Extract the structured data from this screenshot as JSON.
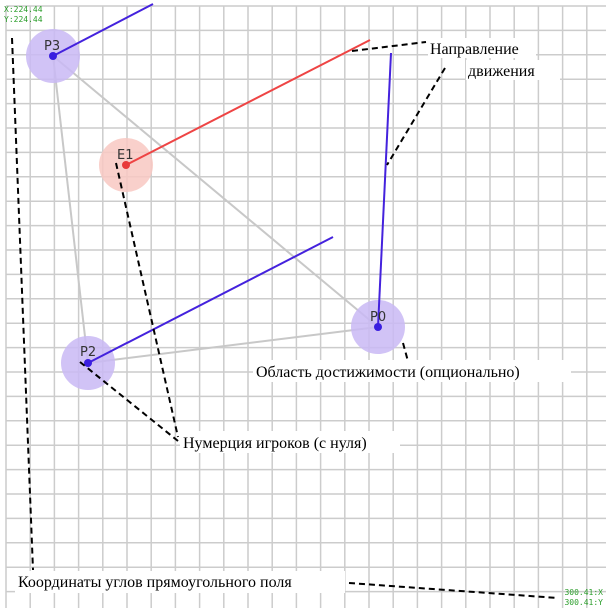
{
  "colors": {
    "grid": "#cccccc",
    "player_fill": "#c9b8f5",
    "player_dot": "#3a1ee0",
    "player_dir": "#4422dd",
    "enemy_fill": "#f8c8c2",
    "enemy_dot": "#e83a3a",
    "enemy_dir": "#ee4444",
    "link": "#c8c8c8",
    "callout": "#000000",
    "coord_text": "#2a9d2a"
  },
  "corner_coords": {
    "top_left_x": "X:224.44",
    "top_left_y": "Y:224.44",
    "bottom_right_x": "300.41:X",
    "bottom_right_y": "300.41:Y"
  },
  "players": [
    {
      "id": "P0",
      "label": "P0",
      "role": "player"
    },
    {
      "id": "P2",
      "label": "P2",
      "role": "player"
    },
    {
      "id": "P3",
      "label": "P3",
      "role": "player"
    },
    {
      "id": "E1",
      "label": "E1",
      "role": "enemy"
    }
  ],
  "annotations": {
    "direction_line1": "Направление",
    "direction_line2": "движения",
    "reach_area": "Область достижимости (опционально)",
    "numbering": "Нумерция игроков (с нуля)",
    "corners": "Координаты углов прямоугольного поля"
  }
}
